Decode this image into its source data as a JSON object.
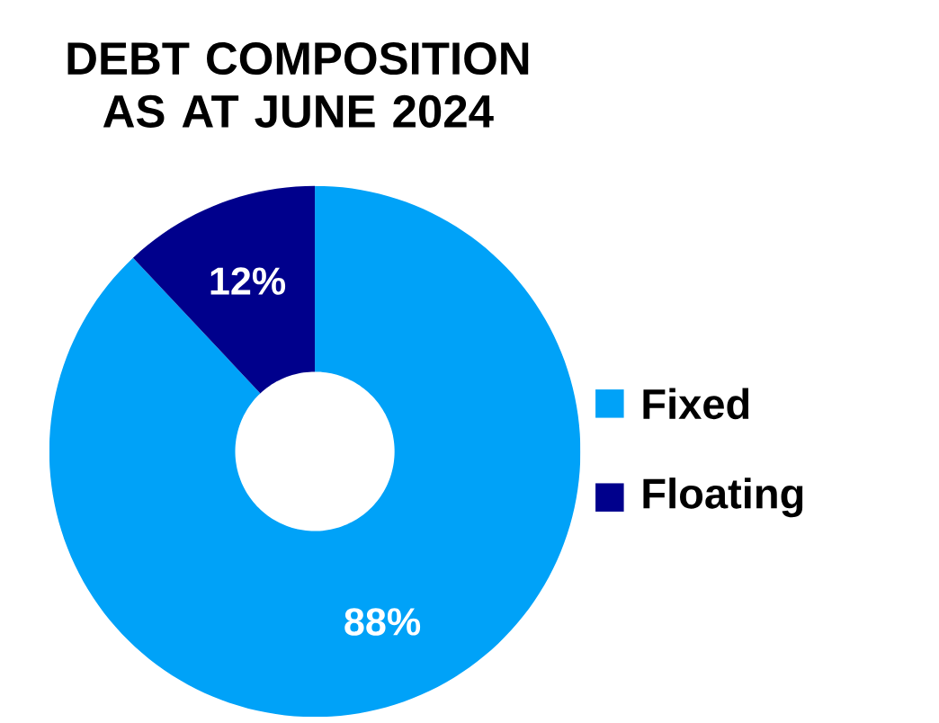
{
  "chart_data": {
    "type": "donut",
    "title": "DEBT COMPOSITION AS AT JUNE 2024",
    "categories": [
      "Fixed",
      "Floating"
    ],
    "values": [
      88,
      12
    ],
    "colors": [
      "#00A2F8",
      "#00008C"
    ],
    "value_labels": [
      "88%",
      "12%"
    ],
    "legend": "right"
  }
}
